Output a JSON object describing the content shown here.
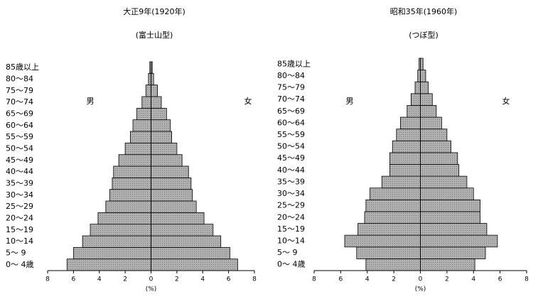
{
  "chart_data": [
    {
      "type": "pyramid",
      "title": "大正9年(1920年)",
      "subtitle": "(富士山型)",
      "xlabel": "(%)",
      "categories": [
        "0～ 4歳",
        "5～ 9",
        "10～14",
        "15～19",
        "20～24",
        "25～29",
        "30～34",
        "35～39",
        "40～44",
        "45～49",
        "50～54",
        "55～59",
        "60～64",
        "65～69",
        "70～74",
        "75～79",
        "80～84",
        "85歳以上"
      ],
      "series": [
        {
          "name": "男",
          "color": "#a9a9a9",
          "values": [
            -6.5,
            -6.0,
            -5.3,
            -4.7,
            -4.1,
            -3.5,
            -3.2,
            -3.0,
            -2.9,
            -2.5,
            -2.0,
            -1.6,
            -1.4,
            -1.1,
            -0.7,
            -0.4,
            -0.2,
            -0.1
          ]
        },
        {
          "name": "女",
          "color": "#a9a9a9",
          "values": [
            6.7,
            6.1,
            5.4,
            4.8,
            4.1,
            3.5,
            3.2,
            3.1,
            2.9,
            2.4,
            2.0,
            1.6,
            1.5,
            1.2,
            0.8,
            0.5,
            0.2,
            0.1
          ]
        }
      ],
      "xlim": [
        -8,
        8
      ],
      "xticks": [
        {
          "value": -8,
          "label": "8"
        },
        {
          "value": -6,
          "label": "6"
        },
        {
          "value": -4,
          "label": "4"
        },
        {
          "value": -2,
          "label": "2"
        },
        0,
        2,
        4,
        6,
        8
      ]
    },
    {
      "type": "pyramid",
      "title": "昭和35年(1960年)",
      "subtitle": "(つぼ型)",
      "xlabel": "(%)",
      "categories": [
        "0～ 4歳",
        "5～ 9",
        "10～14",
        "15～19",
        "20～24",
        "25～29",
        "30～34",
        "35～39",
        "40～44",
        "45～49",
        "50～54",
        "55～59",
        "60～64",
        "65～69",
        "70～74",
        "75～79",
        "80～84",
        "85歳以上"
      ],
      "series": [
        {
          "name": "男",
          "color": "#a9a9a9",
          "values": [
            -4.1,
            -4.8,
            -5.7,
            -4.7,
            -4.2,
            -4.1,
            -3.8,
            -2.9,
            -2.3,
            -2.3,
            -2.1,
            -1.8,
            -1.5,
            -1.0,
            -0.7,
            -0.4,
            -0.2,
            -0.1
          ]
        },
        {
          "name": "女",
          "color": "#a9a9a9",
          "values": [
            4.1,
            4.9,
            5.8,
            5.0,
            4.5,
            4.5,
            4.0,
            3.5,
            2.9,
            2.8,
            2.3,
            2.0,
            1.6,
            1.2,
            0.9,
            0.6,
            0.4,
            0.2
          ]
        }
      ],
      "xlim": [
        -8,
        8
      ],
      "xticks": [
        {
          "value": -8,
          "label": "8"
        },
        {
          "value": -6,
          "label": "6"
        },
        {
          "value": -4,
          "label": "4"
        },
        {
          "value": -2,
          "label": "2"
        },
        0,
        2,
        4,
        6,
        8
      ]
    }
  ]
}
